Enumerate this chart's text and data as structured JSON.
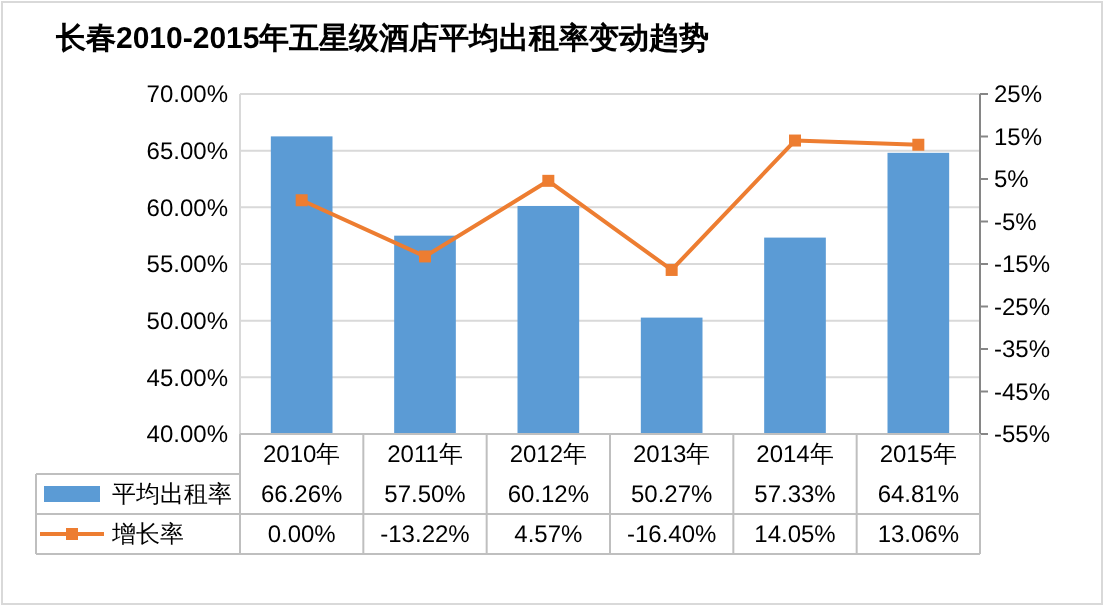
{
  "chart_data": {
    "type": "bar",
    "title": "长春2010-2015年五星级酒店平均出租率变动趋势",
    "categories": [
      "2010年",
      "2011年",
      "2012年",
      "2013年",
      "2014年",
      "2015年"
    ],
    "series": [
      {
        "name": "平均出租率",
        "color": "#5b9bd5",
        "values": [
          66.26,
          57.5,
          60.12,
          50.27,
          57.33,
          64.81
        ],
        "value_labels": [
          "66.26%",
          "57.50%",
          "60.12%",
          "50.27%",
          "57.33%",
          "64.81%"
        ]
      },
      {
        "name": "增长率",
        "type": "line",
        "axis": "y2",
        "color": "#ed7d31",
        "values": [
          0,
          -13.22,
          4.57,
          -16.4,
          14.05,
          13.06
        ],
        "value_labels": [
          "0.00%",
          "-13.22%",
          "4.57%",
          "-16.40%",
          "14.05%",
          "13.06%"
        ]
      }
    ],
    "ylim": [
      40,
      70
    ],
    "yticks": [
      {
        "value": 40,
        "label": "40.00%"
      },
      {
        "value": 45,
        "label": "45.00%"
      },
      {
        "value": 50,
        "label": "50.00%"
      },
      {
        "value": 55,
        "label": "55.00%"
      },
      {
        "value": 60,
        "label": "60.00%"
      },
      {
        "value": 65,
        "label": "65.00%"
      },
      {
        "value": 70,
        "label": "70.00%"
      }
    ],
    "y2lim": [
      -55,
      25
    ],
    "y2ticks": [
      {
        "value": -55,
        "label": "-55%"
      },
      {
        "value": -45,
        "label": "-45%"
      },
      {
        "value": -35,
        "label": "-35%"
      },
      {
        "value": -25,
        "label": "-25%"
      },
      {
        "value": -15,
        "label": "-15%"
      },
      {
        "value": -5,
        "label": "-5%"
      },
      {
        "value": 5,
        "label": "5%"
      },
      {
        "value": 15,
        "label": "15%"
      },
      {
        "value": 25,
        "label": "25%"
      }
    ],
    "grid": "y",
    "legend": "bottom",
    "marker": "square"
  }
}
